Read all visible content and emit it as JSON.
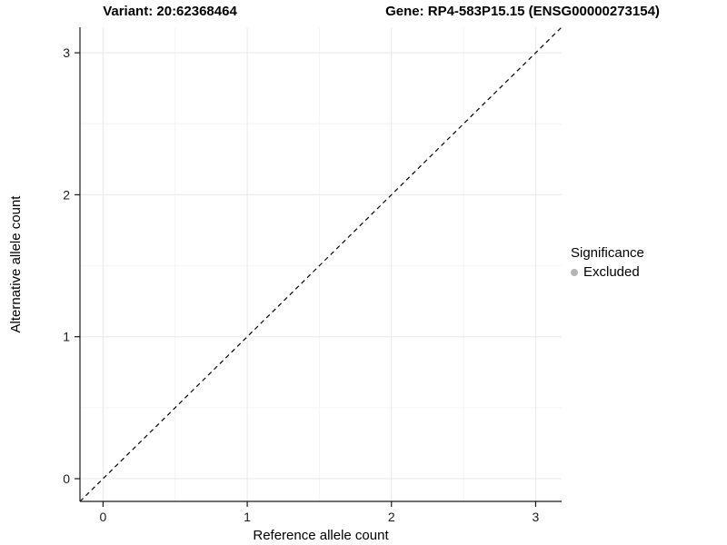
{
  "header": {
    "variant_title": "Variant: 20:62368464",
    "gene_title": "Gene: RP4-583P15.15 (ENSG00000273154)"
  },
  "chart_data": {
    "type": "scatter",
    "title_left": "Variant: 20:62368464",
    "title_right": "Gene: RP4-583P15.15 (ENSG00000273154)",
    "xlabel": "Reference allele count",
    "ylabel": "Alternative allele count",
    "xticks": [
      0,
      1,
      2,
      3
    ],
    "yticks": [
      0,
      1,
      2,
      3
    ],
    "xlim": [
      -0.16,
      3.18
    ],
    "ylim": [
      -0.16,
      3.18
    ],
    "points": [],
    "reference_line": {
      "type": "identity",
      "style": "dashed",
      "from": [
        -0.16,
        -0.16
      ],
      "to": [
        3.18,
        3.18
      ],
      "color": "#000000"
    },
    "grid": true,
    "legend": {
      "title": "Significance",
      "position": "right",
      "entries": [
        {
          "label": "Excluded",
          "color": "#b5b5b5",
          "marker": "circle"
        }
      ]
    },
    "colors": {
      "grid_major": "#e8e8e8",
      "grid_minor": "#f4f4f4",
      "axis_line": "#1a1a1a",
      "tick_text": "#1a1a1a",
      "panel_bg": "#ffffff"
    }
  }
}
